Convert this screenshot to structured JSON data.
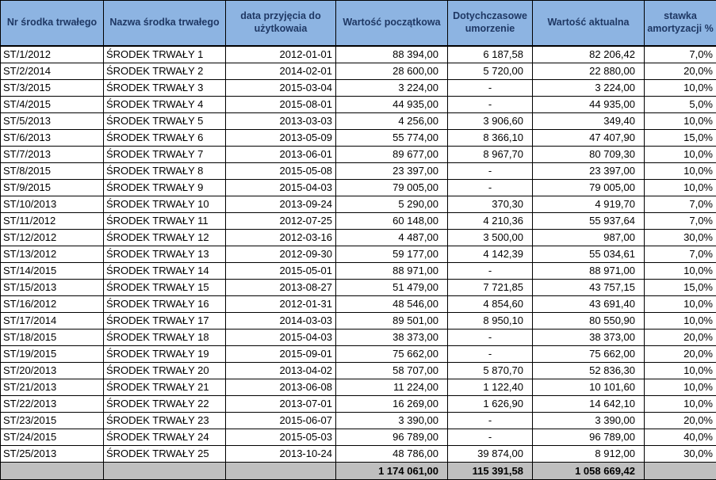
{
  "colors": {
    "header_bg": "#8DB4E2",
    "header_text": "#1F3864",
    "total_row_bg": "#BFBFBF",
    "grid_border": "#000000",
    "row_bg": "#FFFFFF"
  },
  "table": {
    "columns": [
      {
        "label": "Nr środka trwałego"
      },
      {
        "label": "Nazwa środka trwałego"
      },
      {
        "label": "data przyjęcia do użytkowaia"
      },
      {
        "label": "Wartość początkowa"
      },
      {
        "label": "Dotychczasowe umorzenie"
      },
      {
        "label": "Wartość aktualna"
      },
      {
        "label": "stawka amortyzacji %"
      }
    ],
    "rows": [
      [
        "ST/1/2012",
        "ŚRODEK TRWAŁY 1",
        "2012-01-01",
        "88 394,00",
        "6 187,58",
        "82 206,42",
        "7,0%"
      ],
      [
        "ST/2/2014",
        "ŚRODEK TRWAŁY 2",
        "2014-02-01",
        "28 600,00",
        "5 720,00",
        "22 880,00",
        "20,0%"
      ],
      [
        "ST/3/2015",
        "ŚRODEK TRWAŁY 3",
        "2015-03-04",
        "3 224,00",
        "-",
        "3 224,00",
        "10,0%"
      ],
      [
        "ST/4/2015",
        "ŚRODEK TRWAŁY 4",
        "2015-08-01",
        "44 935,00",
        "-",
        "44 935,00",
        "5,0%"
      ],
      [
        "ST/5/2013",
        "ŚRODEK TRWAŁY 5",
        "2013-03-03",
        "4 256,00",
        "3 906,60",
        "349,40",
        "10,0%"
      ],
      [
        "ST/6/2013",
        "ŚRODEK TRWAŁY 6",
        "2013-05-09",
        "55 774,00",
        "8 366,10",
        "47 407,90",
        "15,0%"
      ],
      [
        "ST/7/2013",
        "ŚRODEK TRWAŁY 7",
        "2013-06-01",
        "89 677,00",
        "8 967,70",
        "80 709,30",
        "10,0%"
      ],
      [
        "ST/8/2015",
        "ŚRODEK TRWAŁY 8",
        "2015-05-08",
        "23 397,00",
        "-",
        "23 397,00",
        "10,0%"
      ],
      [
        "ST/9/2015",
        "ŚRODEK TRWAŁY 9",
        "2015-04-03",
        "79 005,00",
        "-",
        "79 005,00",
        "10,0%"
      ],
      [
        "ST/10/2013",
        "ŚRODEK TRWAŁY 10",
        "2013-09-24",
        "5 290,00",
        "370,30",
        "4 919,70",
        "7,0%"
      ],
      [
        "ST/11/2012",
        "ŚRODEK TRWAŁY 11",
        "2012-07-25",
        "60 148,00",
        "4 210,36",
        "55 937,64",
        "7,0%"
      ],
      [
        "ST/12/2012",
        "ŚRODEK TRWAŁY 12",
        "2012-03-16",
        "4 487,00",
        "3 500,00",
        "987,00",
        "30,0%"
      ],
      [
        "ST/13/2012",
        "ŚRODEK TRWAŁY 13",
        "2012-09-30",
        "59 177,00",
        "4 142,39",
        "55 034,61",
        "7,0%"
      ],
      [
        "ST/14/2015",
        "ŚRODEK TRWAŁY 14",
        "2015-05-01",
        "88 971,00",
        "-",
        "88 971,00",
        "10,0%"
      ],
      [
        "ST/15/2013",
        "ŚRODEK TRWAŁY 15",
        "2013-08-27",
        "51 479,00",
        "7 721,85",
        "43 757,15",
        "15,0%"
      ],
      [
        "ST/16/2012",
        "ŚRODEK TRWAŁY 16",
        "2012-01-31",
        "48 546,00",
        "4 854,60",
        "43 691,40",
        "10,0%"
      ],
      [
        "ST/17/2014",
        "ŚRODEK TRWAŁY 17",
        "2014-03-03",
        "89 501,00",
        "8 950,10",
        "80 550,90",
        "10,0%"
      ],
      [
        "ST/18/2015",
        "ŚRODEK TRWAŁY 18",
        "2015-04-03",
        "38 373,00",
        "-",
        "38 373,00",
        "20,0%"
      ],
      [
        "ST/19/2015",
        "ŚRODEK TRWAŁY 19",
        "2015-09-01",
        "75 662,00",
        "-",
        "75 662,00",
        "20,0%"
      ],
      [
        "ST/20/2013",
        "ŚRODEK TRWAŁY 20",
        "2013-04-02",
        "58 707,00",
        "5 870,70",
        "52 836,30",
        "10,0%"
      ],
      [
        "ST/21/2013",
        "ŚRODEK TRWAŁY 21",
        "2013-06-08",
        "11 224,00",
        "1 122,40",
        "10 101,60",
        "10,0%"
      ],
      [
        "ST/22/2013",
        "ŚRODEK TRWAŁY 22",
        "2013-07-01",
        "16 269,00",
        "1 626,90",
        "14 642,10",
        "10,0%"
      ],
      [
        "ST/23/2015",
        "ŚRODEK TRWAŁY 23",
        "2015-06-07",
        "3 390,00",
        "-",
        "3 390,00",
        "20,0%"
      ],
      [
        "ST/24/2015",
        "ŚRODEK TRWAŁY 24",
        "2015-05-03",
        "96 789,00",
        "-",
        "96 789,00",
        "40,0%"
      ],
      [
        "ST/25/2013",
        "ŚRODEK TRWAŁY 25",
        "2013-10-24",
        "48 786,00",
        "39 874,00",
        "8 912,00",
        "30,0%"
      ]
    ],
    "totals": {
      "initial_value": "1 174 061,00",
      "depreciation": "115 391,58",
      "current_value": "1 058 669,42"
    }
  }
}
